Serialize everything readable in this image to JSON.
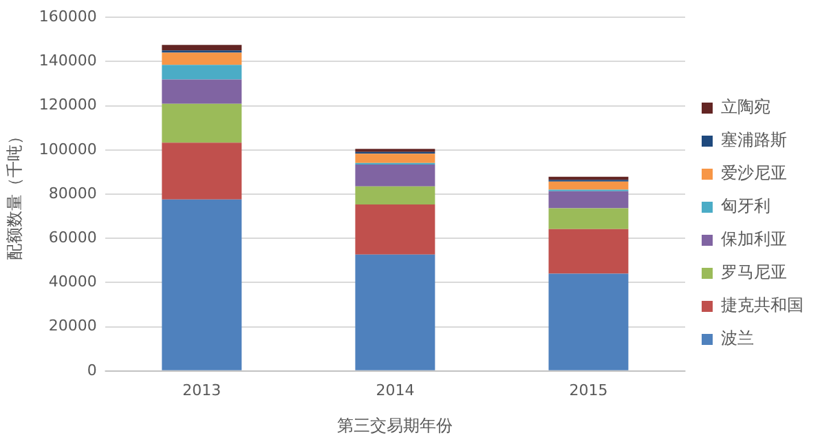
{
  "chart_data": {
    "type": "bar",
    "stacked": true,
    "categories": [
      "2013",
      "2014",
      "2015"
    ],
    "xlabel": "第三交易期年份",
    "ylabel": "配额数量（千吨）",
    "ylim": [
      0,
      160000
    ],
    "yticks": [
      0,
      20000,
      40000,
      60000,
      80000,
      100000,
      120000,
      140000,
      160000
    ],
    "grid": "y",
    "legend": "right",
    "series": [
      {
        "name": "波兰",
        "color": "#4f81bd",
        "values": [
          77600,
          52700,
          44000
        ]
      },
      {
        "name": "捷克共和国",
        "color": "#c0504d",
        "values": [
          25700,
          22600,
          20200
        ]
      },
      {
        "name": "罗马尼亚",
        "color": "#9bbb59",
        "values": [
          17600,
          8200,
          9400
        ]
      },
      {
        "name": "保加利亚",
        "color": "#8064a2",
        "values": [
          11000,
          9900,
          7700
        ]
      },
      {
        "name": "匈牙利",
        "color": "#4bacc6",
        "values": [
          6600,
          700,
          700
        ]
      },
      {
        "name": "爱沙尼亚",
        "color": "#f79646",
        "values": [
          5500,
          4200,
          3700
        ]
      },
      {
        "name": "塞浦路斯",
        "color": "#1f497d",
        "values": [
          1000,
          800,
          800
        ]
      },
      {
        "name": "立陶宛",
        "color": "#632523",
        "values": [
          2500,
          1400,
          1400
        ]
      }
    ]
  }
}
